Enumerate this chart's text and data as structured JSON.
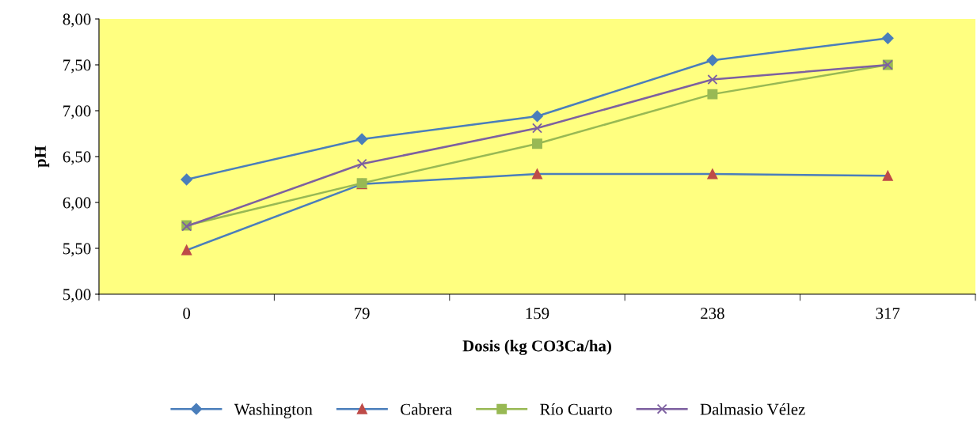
{
  "chart_data": {
    "type": "line",
    "xlabel": "Dosis (kg CO3Ca/ha)",
    "ylabel": "pH",
    "categories": [
      "0",
      "79",
      "159",
      "238",
      "317"
    ],
    "ylim": [
      5,
      8
    ],
    "yticks": [
      {
        "value": 5,
        "label": "5,00"
      },
      {
        "value": 5.5,
        "label": "5,50"
      },
      {
        "value": 6,
        "label": "6,00"
      },
      {
        "value": 6.5,
        "label": "6,50"
      },
      {
        "value": 7,
        "label": "7,00"
      },
      {
        "value": 7.5,
        "label": "7,50"
      },
      {
        "value": 8,
        "label": "8,00"
      }
    ],
    "grid": false,
    "legend": "bottom",
    "series": [
      {
        "name": "Washington",
        "color": "#4a7ebb",
        "marker": "diamond",
        "values": [
          6.25,
          6.69,
          6.94,
          7.55,
          7.79
        ]
      },
      {
        "name": "Cabrera",
        "color": "#be4b48",
        "marker": "triangle",
        "values": [
          5.48,
          6.2,
          6.31,
          6.31,
          6.29
        ]
      },
      {
        "name": "Río Cuarto",
        "color": "#98b954",
        "marker": "square",
        "values": [
          5.75,
          6.21,
          6.64,
          7.18,
          7.5
        ]
      },
      {
        "name": "Dalmasio Vélez",
        "color": "#7d60a0",
        "marker": "cross",
        "values": [
          5.74,
          6.42,
          6.81,
          7.34,
          7.5
        ]
      }
    ]
  }
}
